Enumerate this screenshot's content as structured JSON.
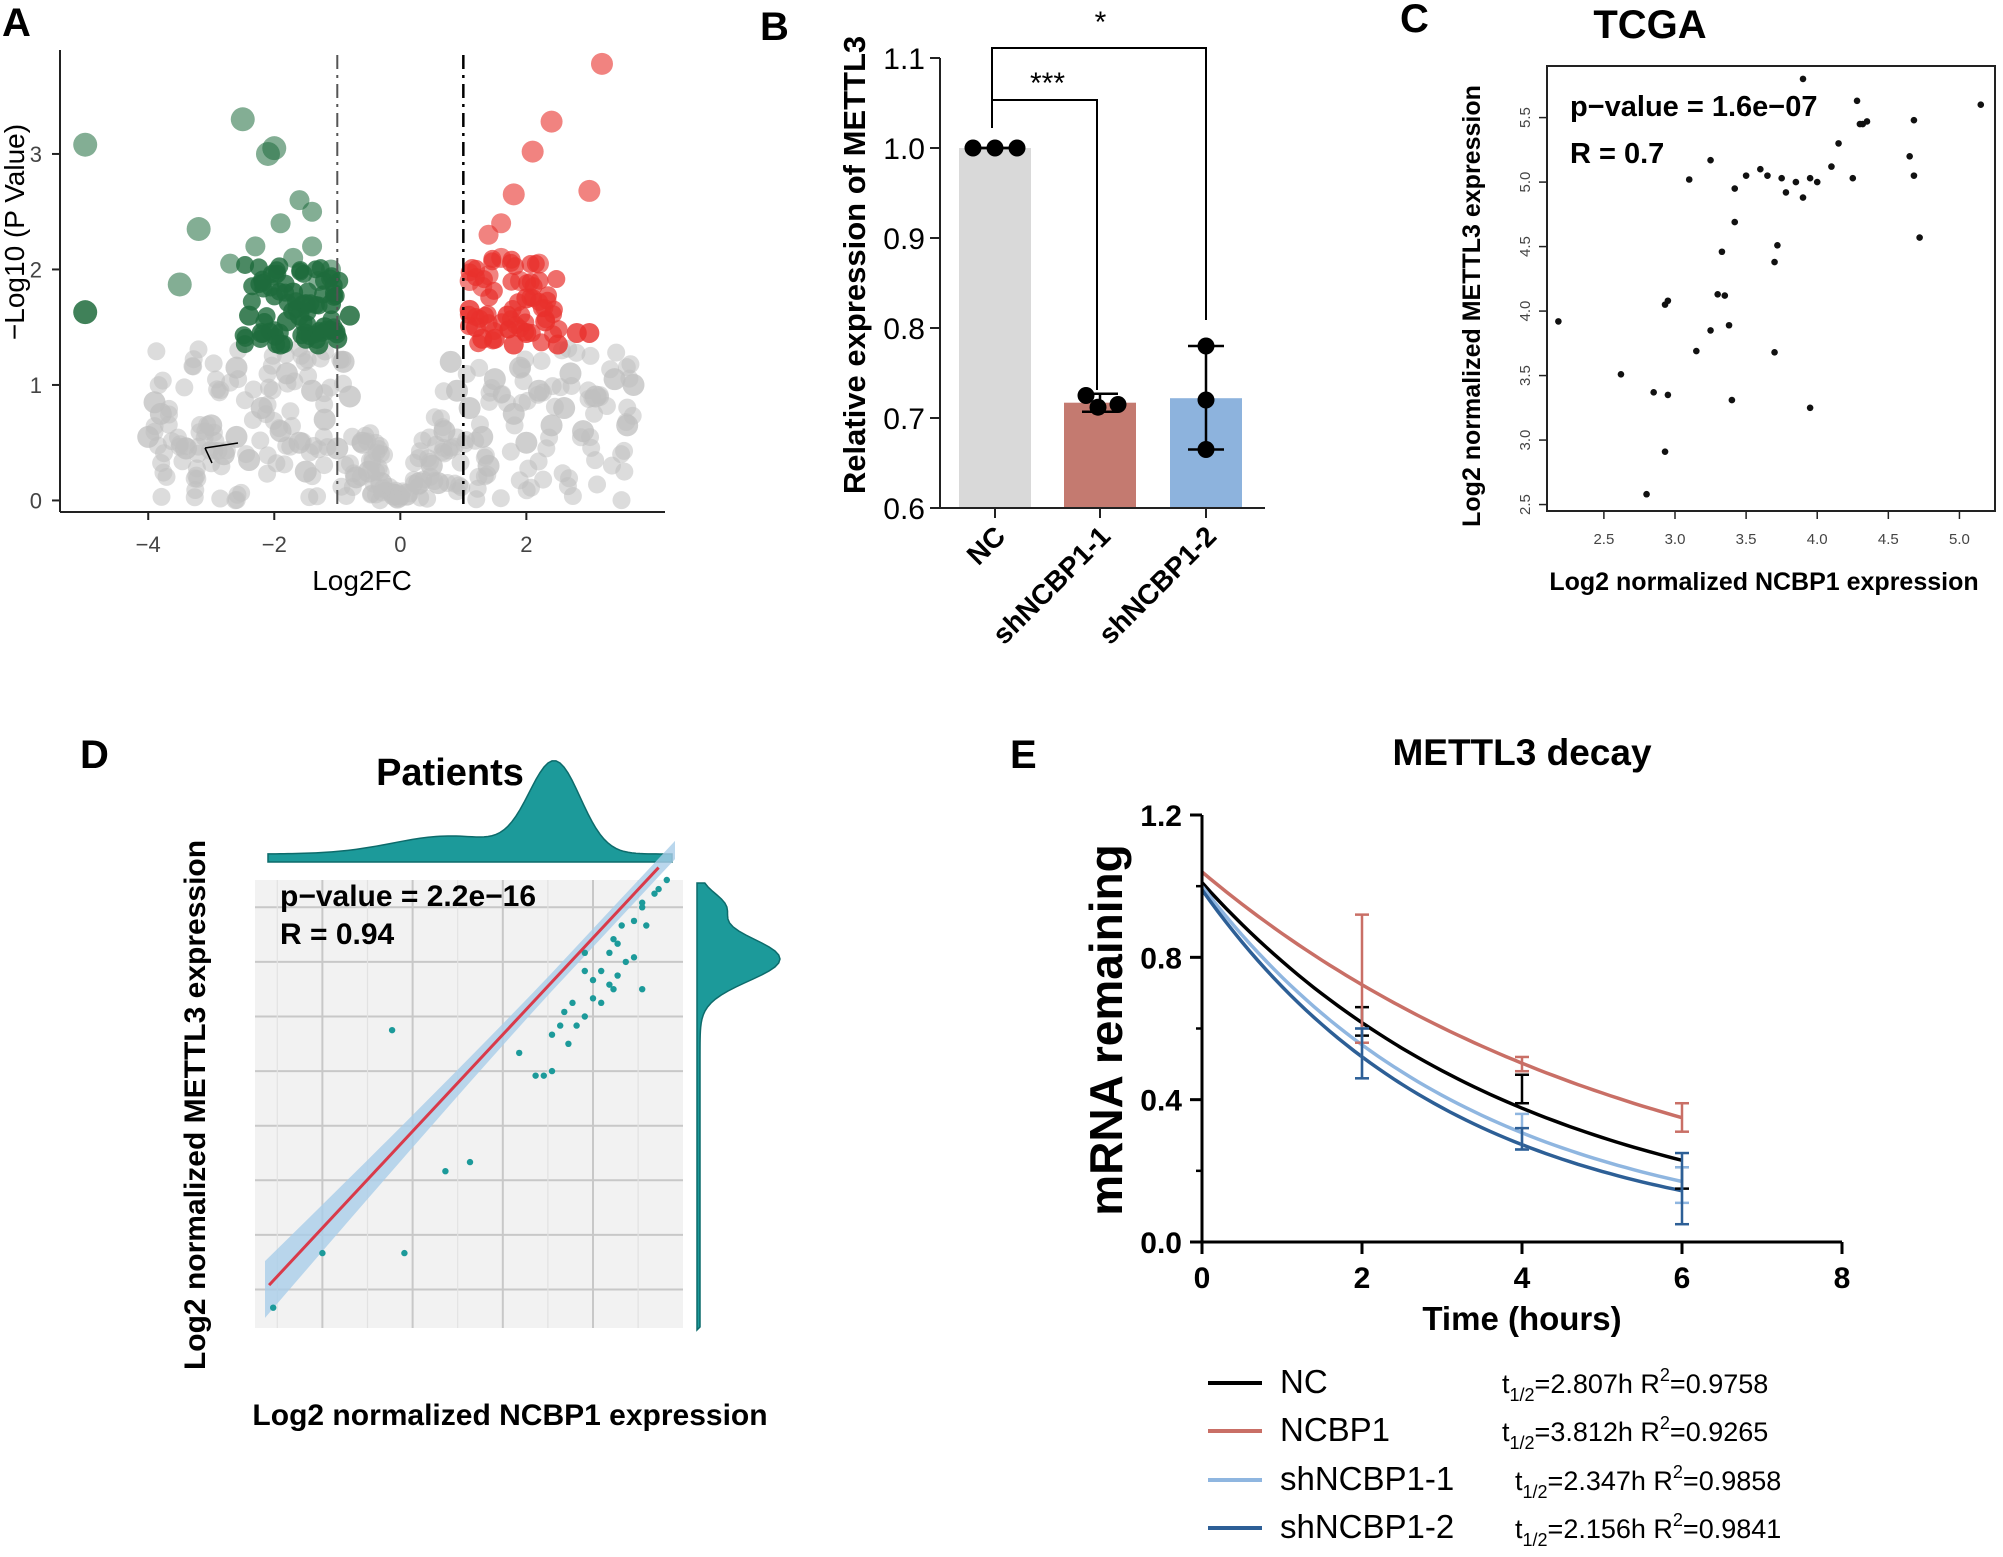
{
  "panel_labels": {
    "a": "A",
    "b": "B",
    "c": "C",
    "d": "D",
    "e": "E"
  },
  "chart_data": [
    {
      "id": "A",
      "type": "scatter",
      "title": "",
      "xlabel": "Log2FC",
      "ylabel": "−Log10 (P Value)",
      "xlim": [
        -5.4,
        4.2
      ],
      "ylim": [
        -0.1,
        3.9
      ],
      "xticks": [
        -4,
        -2,
        0,
        2
      ],
      "xtick_labels": [
        "−4",
        "−2",
        "0",
        "2"
      ],
      "yticks": [
        0,
        1,
        2,
        3
      ],
      "ytick_labels": [
        "0",
        "1",
        "2",
        "3"
      ],
      "thresholds": {
        "log2fc_down": -1,
        "log2fc_up": 1,
        "neg_log10_p": 1.3
      },
      "colors": {
        "down": "#1e6b3c",
        "up": "#e8302c",
        "ns": "#bfbfbf"
      },
      "series": [
        {
          "name": "down",
          "points": [
            [
              -5.0,
              3.08
            ],
            [
              -5.0,
              1.63
            ],
            [
              -3.2,
              2.35
            ],
            [
              -3.5,
              1.87
            ],
            [
              -2.5,
              3.3
            ],
            [
              -2.1,
              3.0
            ],
            [
              -2.0,
              3.05
            ],
            [
              -1.6,
              2.6
            ],
            [
              -1.4,
              2.5
            ],
            [
              -2.7,
              2.05
            ],
            [
              -2.3,
              2.2
            ],
            [
              -2.0,
              1.95
            ],
            [
              -1.7,
              1.8
            ],
            [
              -1.3,
              1.9
            ],
            [
              -1.1,
              1.7
            ],
            [
              -2.2,
              1.45
            ],
            [
              -1.8,
              1.55
            ],
            [
              -1.5,
              1.4
            ],
            [
              -1.2,
              1.5
            ],
            [
              -1.9,
              1.35
            ],
            [
              -1.6,
              1.6
            ],
            [
              -1.3,
              1.35
            ],
            [
              -1.0,
              1.4
            ],
            [
              -2.4,
              1.6
            ],
            [
              -1.7,
              2.1
            ],
            [
              -1.4,
              2.2
            ],
            [
              -1.1,
              2.0
            ],
            [
              -0.8,
              1.6
            ],
            [
              -1.9,
              2.4
            ],
            [
              -1.5,
              1.7
            ]
          ]
        },
        {
          "name": "up",
          "points": [
            [
              3.2,
              3.78
            ],
            [
              2.4,
              3.28
            ],
            [
              2.1,
              3.02
            ],
            [
              3.0,
              2.68
            ],
            [
              1.8,
              2.65
            ],
            [
              1.4,
              2.3
            ],
            [
              1.6,
              2.1
            ],
            [
              1.9,
              1.9
            ],
            [
              2.2,
              2.05
            ],
            [
              1.3,
              1.85
            ],
            [
              1.7,
              1.6
            ],
            [
              2.0,
              1.75
            ],
            [
              1.2,
              1.5
            ],
            [
              1.5,
              1.4
            ],
            [
              2.3,
              1.55
            ],
            [
              2.8,
              1.45
            ],
            [
              1.1,
              1.65
            ],
            [
              1.8,
              1.35
            ],
            [
              2.5,
              1.35
            ],
            [
              3.0,
              1.45
            ],
            [
              1.4,
              1.95
            ],
            [
              1.6,
              2.4
            ],
            [
              1.1,
              1.9
            ],
            [
              2.0,
              1.45
            ],
            [
              1.3,
              1.4
            ]
          ]
        },
        {
          "name": "ns",
          "points": [
            [
              -4.0,
              0.55
            ],
            [
              -3.8,
              0.75
            ],
            [
              -3.4,
              0.45
            ],
            [
              -3.0,
              0.65
            ],
            [
              -2.8,
              0.4
            ],
            [
              -2.6,
              0.55
            ],
            [
              -2.4,
              0.35
            ],
            [
              -2.2,
              0.8
            ],
            [
              -1.9,
              0.6
            ],
            [
              -1.6,
              0.5
            ],
            [
              -1.4,
              0.95
            ],
            [
              -1.2,
              0.7
            ],
            [
              -1.0,
              0.45
            ],
            [
              -0.8,
              0.9
            ],
            [
              -0.6,
              0.5
            ],
            [
              -0.5,
              0.25
            ],
            [
              -0.3,
              0.15
            ],
            [
              -0.1,
              0.05
            ],
            [
              0.1,
              0.05
            ],
            [
              0.3,
              0.15
            ],
            [
              0.5,
              0.3
            ],
            [
              0.7,
              0.6
            ],
            [
              0.9,
              0.95
            ],
            [
              1.1,
              0.8
            ],
            [
              1.3,
              0.55
            ],
            [
              1.5,
              1.05
            ],
            [
              1.8,
              0.75
            ],
            [
              2.0,
              0.5
            ],
            [
              2.2,
              0.95
            ],
            [
              2.4,
              0.65
            ],
            [
              2.6,
              0.8
            ],
            [
              2.9,
              0.6
            ],
            [
              3.1,
              0.9
            ],
            [
              3.4,
              1.05
            ],
            [
              3.6,
              0.65
            ],
            [
              -1.8,
              1.1
            ],
            [
              -2.6,
              1.15
            ],
            [
              1.9,
              1.15
            ],
            [
              2.7,
              1.1
            ],
            [
              -0.9,
              1.2
            ],
            [
              0.8,
              1.2
            ],
            [
              -1.5,
              0.25
            ],
            [
              1.4,
              0.3
            ],
            [
              -0.7,
              0.2
            ],
            [
              0.6,
              0.15
            ],
            [
              -3.9,
              0.85
            ],
            [
              3.7,
              1.0
            ]
          ]
        }
      ]
    },
    {
      "id": "B",
      "type": "bar",
      "title": "",
      "categories": [
        "NC",
        "shNCBP1-1",
        "shNCBP1-2"
      ],
      "values": [
        1.0,
        0.717,
        0.722
      ],
      "points": [
        [
          1.0,
          1.0,
          1.0
        ],
        [
          0.725,
          0.712,
          0.715
        ],
        [
          0.78,
          0.72,
          0.665
        ]
      ],
      "error": [
        [
          1.0,
          1.0
        ],
        [
          0.707,
          0.727
        ],
        [
          0.665,
          0.78
        ]
      ],
      "colors": [
        "#d9d9d9",
        "#c47a70",
        "#8db3dd"
      ],
      "ylabel": "Relative  expression of METTL3",
      "ylim": [
        0.6,
        1.1
      ],
      "yticks": [
        0.6,
        0.7,
        0.8,
        0.9,
        1.0,
        1.1
      ],
      "ytick_labels": [
        "0.6",
        "0.7",
        "0.8",
        "0.9",
        "1.0",
        "1.1"
      ],
      "significance": [
        {
          "from": "NC",
          "to": "shNCBP1-1",
          "label": "***"
        },
        {
          "from": "NC",
          "to": "shNCBP1-2",
          "label": "*"
        }
      ]
    },
    {
      "id": "C",
      "type": "scatter",
      "title": "TCGA",
      "xlabel": "Log2 normalized NCBP1 expression",
      "ylabel": "Log2 normalized METTL3 expression",
      "xlim": [
        2.1,
        5.25
      ],
      "ylim": [
        2.45,
        5.9
      ],
      "xticks": [
        2.5,
        3.0,
        3.5,
        4.0,
        4.5,
        5.0
      ],
      "xtick_labels": [
        "2.5",
        "3.0",
        "3.5",
        "4.0",
        "4.5",
        "5.0"
      ],
      "yticks": [
        2.5,
        3.0,
        3.5,
        4.0,
        4.5,
        5.0,
        5.5
      ],
      "ytick_labels": [
        "2.5",
        "3.0",
        "3.5",
        "4.0",
        "4.5",
        "5.0",
        "5.5"
      ],
      "annotation": [
        "p−value = 1.6e−07",
        "R = 0.7"
      ],
      "points": [
        [
          2.18,
          3.92
        ],
        [
          2.8,
          2.58
        ],
        [
          2.62,
          3.51
        ],
        [
          2.85,
          3.37
        ],
        [
          2.95,
          3.35
        ],
        [
          2.93,
          2.91
        ],
        [
          2.95,
          4.08
        ],
        [
          2.93,
          4.05
        ],
        [
          3.15,
          3.69
        ],
        [
          3.25,
          3.85
        ],
        [
          3.3,
          4.13
        ],
        [
          3.35,
          4.12
        ],
        [
          3.38,
          3.89
        ],
        [
          3.4,
          3.31
        ],
        [
          3.33,
          4.46
        ],
        [
          3.42,
          4.69
        ],
        [
          3.42,
          4.95
        ],
        [
          3.5,
          5.05
        ],
        [
          3.6,
          5.1
        ],
        [
          3.65,
          5.05
        ],
        [
          3.75,
          5.03
        ],
        [
          3.7,
          4.38
        ],
        [
          3.72,
          4.51
        ],
        [
          3.7,
          3.68
        ],
        [
          3.78,
          4.92
        ],
        [
          3.85,
          5.0
        ],
        [
          3.9,
          4.88
        ],
        [
          3.95,
          5.03
        ],
        [
          4.0,
          5.0
        ],
        [
          4.1,
          5.12
        ],
        [
          4.15,
          5.3
        ],
        [
          4.25,
          5.03
        ],
        [
          4.3,
          5.45
        ],
        [
          4.32,
          5.45
        ],
        [
          4.35,
          5.47
        ],
        [
          4.28,
          5.63
        ],
        [
          3.95,
          3.25
        ],
        [
          3.1,
          5.02
        ],
        [
          3.25,
          5.17
        ],
        [
          3.9,
          5.8
        ],
        [
          4.65,
          5.2
        ],
        [
          4.68,
          5.48
        ],
        [
          4.68,
          5.05
        ],
        [
          4.72,
          4.57
        ],
        [
          5.15,
          5.6
        ]
      ]
    },
    {
      "id": "D",
      "type": "scatter",
      "title": "Patients",
      "xlabel": "Log2 normalized NCBP1 expression",
      "ylabel": "Log2 normalized METTL3 expression",
      "xlim": [
        0,
        1
      ],
      "ylim": [
        0,
        1
      ],
      "annotation": [
        "p−value = 2.2e−16",
        "R = 0.94"
      ],
      "regression": {
        "slope": 0.966,
        "intercept": 0.1
      },
      "colors": {
        "points": "#1c9a9a",
        "line": "#d93a4a",
        "band": "#a9cde8",
        "density": "#1c9a9a"
      },
      "points": [
        [
          0.02,
          0.06
        ],
        [
          0.14,
          0.18
        ],
        [
          0.34,
          0.18
        ],
        [
          0.44,
          0.36
        ],
        [
          0.5,
          0.38
        ],
        [
          0.66,
          0.57
        ],
        [
          0.68,
          0.57
        ],
        [
          0.7,
          0.58
        ],
        [
          0.62,
          0.62
        ],
        [
          0.7,
          0.66
        ],
        [
          0.72,
          0.68
        ],
        [
          0.75,
          0.73
        ],
        [
          0.76,
          0.68
        ],
        [
          0.78,
          0.7
        ],
        [
          0.8,
          0.78
        ],
        [
          0.82,
          0.8
        ],
        [
          0.84,
          0.84
        ],
        [
          0.86,
          0.86
        ],
        [
          0.9,
          0.91
        ],
        [
          0.92,
          0.94
        ],
        [
          0.93,
          0.9
        ],
        [
          0.95,
          0.97
        ],
        [
          0.98,
          1.0
        ],
        [
          0.88,
          0.82
        ],
        [
          0.85,
          0.76
        ],
        [
          0.84,
          0.77
        ],
        [
          0.8,
          0.74
        ],
        [
          0.86,
          0.79
        ],
        [
          0.9,
          0.83
        ],
        [
          0.78,
          0.8
        ],
        [
          0.73,
          0.71
        ],
        [
          0.92,
          0.95
        ],
        [
          0.96,
          0.98
        ],
        [
          0.87,
          0.9
        ],
        [
          0.82,
          0.73
        ],
        [
          0.92,
          0.76
        ],
        [
          0.74,
          0.64
        ],
        [
          0.31,
          0.67
        ],
        [
          0.78,
          0.84
        ],
        [
          0.85,
          0.87
        ]
      ]
    },
    {
      "id": "E",
      "type": "line",
      "title": "METTL3 decay",
      "xlabel": "Time (hours)",
      "ylabel": "mRNA remaining",
      "xlim": [
        0,
        8
      ],
      "ylim": [
        0,
        1.2
      ],
      "xticks": [
        0,
        2,
        4,
        6,
        8
      ],
      "xtick_labels": [
        "0",
        "2",
        "4",
        "6",
        "8"
      ],
      "yticks": [
        0,
        0.4,
        0.8,
        1.2
      ],
      "ytick_labels": [
        "0.0",
        "0.4",
        "0.8",
        "1.2"
      ],
      "x": [
        2,
        4,
        6
      ],
      "series": [
        {
          "name": "NC",
          "color": "#000000",
          "y0": 1.01,
          "half_life": "2.807h",
          "r2": "0.9758",
          "mean": [
            0.62,
            0.43,
            0.18
          ],
          "err": [
            0.04,
            0.04,
            0.03
          ]
        },
        {
          "name": "NCBP1",
          "color": "#c96f66",
          "y0": 1.04,
          "half_life": "3.812h",
          "r2": "0.9265",
          "mean": [
            0.74,
            0.5,
            0.35
          ],
          "err": [
            0.18,
            0.02,
            0.04
          ]
        },
        {
          "name": "shNCBP1-1",
          "color": "#8fb6e0",
          "y0": 1.0,
          "half_life": "2.347h",
          "r2": "0.9858",
          "mean": [
            0.53,
            0.31,
            0.16
          ],
          "err": [
            0.07,
            0.05,
            0.05
          ]
        },
        {
          "name": "shNCBP1-2",
          "color": "#2d5f96",
          "y0": 0.99,
          "half_life": "2.156h",
          "r2": "0.9841",
          "mean": [
            0.53,
            0.29,
            0.15
          ],
          "err": [
            0.07,
            0.03,
            0.1
          ]
        }
      ]
    }
  ]
}
